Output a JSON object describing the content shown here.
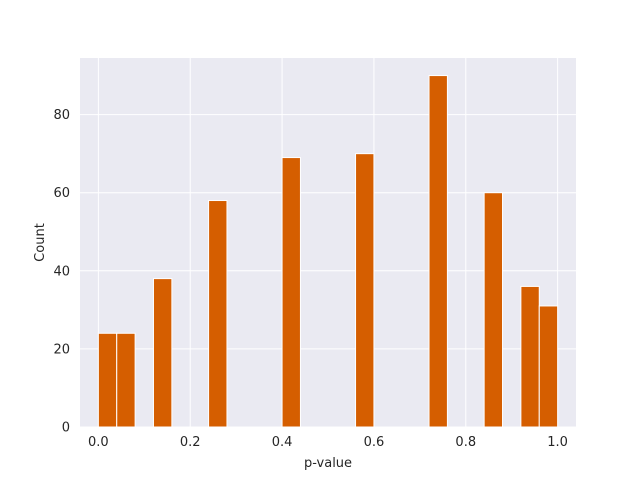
{
  "chart_data": {
    "type": "bar",
    "title": "",
    "xlabel": "p-value",
    "ylabel": "Count",
    "xlim": [
      -0.04,
      1.04
    ],
    "ylim": [
      0,
      94.5
    ],
    "grid": true,
    "bar_color": "#d55e00",
    "background_color": "#eaeaf2",
    "grid_color": "#ffffff",
    "x_ticks": [
      0.0,
      0.2,
      0.4,
      0.6,
      0.8,
      1.0
    ],
    "x_tick_labels": [
      "0.0",
      "0.2",
      "0.4",
      "0.6",
      "0.8",
      "1.0"
    ],
    "y_ticks": [
      0,
      20,
      40,
      60,
      80
    ],
    "y_tick_labels": [
      "0",
      "20",
      "40",
      "60",
      "80"
    ],
    "bins": [
      {
        "x0": 0.0,
        "x1": 0.04,
        "count": 24
      },
      {
        "x0": 0.04,
        "x1": 0.08,
        "count": 24
      },
      {
        "x0": 0.12,
        "x1": 0.16,
        "count": 38
      },
      {
        "x0": 0.24,
        "x1": 0.28,
        "count": 58
      },
      {
        "x0": 0.4,
        "x1": 0.44,
        "count": 69
      },
      {
        "x0": 0.56,
        "x1": 0.6,
        "count": 70
      },
      {
        "x0": 0.72,
        "x1": 0.76,
        "count": 90
      },
      {
        "x0": 0.84,
        "x1": 0.88,
        "count": 60
      },
      {
        "x0": 0.92,
        "x1": 0.96,
        "count": 36
      },
      {
        "x0": 0.96,
        "x1": 1.0,
        "count": 31
      }
    ]
  }
}
